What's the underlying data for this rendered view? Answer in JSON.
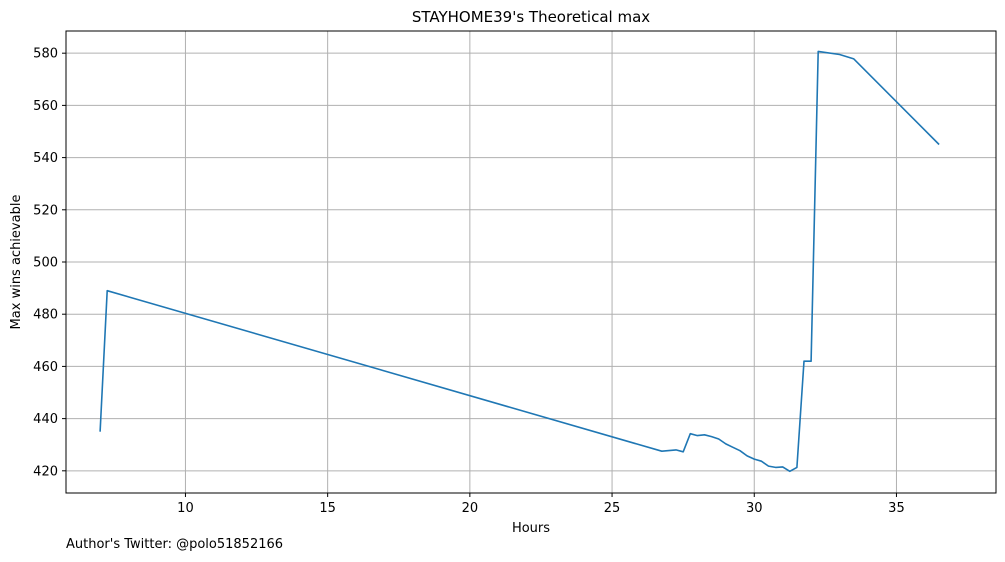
{
  "chart_data": {
    "type": "line",
    "title": "STAYHOME39's Theoretical max",
    "xlabel": "Hours",
    "ylabel": "Max wins achievable",
    "xlim": [
      5.8,
      38.5
    ],
    "ylim": [
      411.5,
      588.5
    ],
    "x_ticks": [
      10,
      15,
      20,
      25,
      30,
      35
    ],
    "y_ticks": [
      420,
      440,
      460,
      480,
      500,
      520,
      540,
      560,
      580
    ],
    "grid": true,
    "series_color": "#1f77b4",
    "series": [
      {
        "x": [
          7.0,
          7.25,
          26.75,
          27.25,
          27.5,
          27.75,
          28.0,
          28.25,
          28.5,
          28.75,
          29.0,
          29.25,
          29.5,
          29.75,
          30.0,
          30.25,
          30.5,
          30.75,
          31.0,
          31.25,
          31.5,
          31.75,
          32.0,
          32.25,
          33.0,
          33.5,
          36.5
        ],
        "y": [
          435,
          489,
          427.5,
          428,
          427.3,
          434.2,
          433.5,
          433.8,
          433.1,
          432.2,
          430.3,
          429,
          427.7,
          425.7,
          424.5,
          423.7,
          421.8,
          421.3,
          421.5,
          419.8,
          421.3,
          462,
          462,
          580.7,
          579.5,
          577.8,
          545
        ]
      }
    ]
  },
  "footer": {
    "author_note": "Author's Twitter: @polo51852166"
  }
}
